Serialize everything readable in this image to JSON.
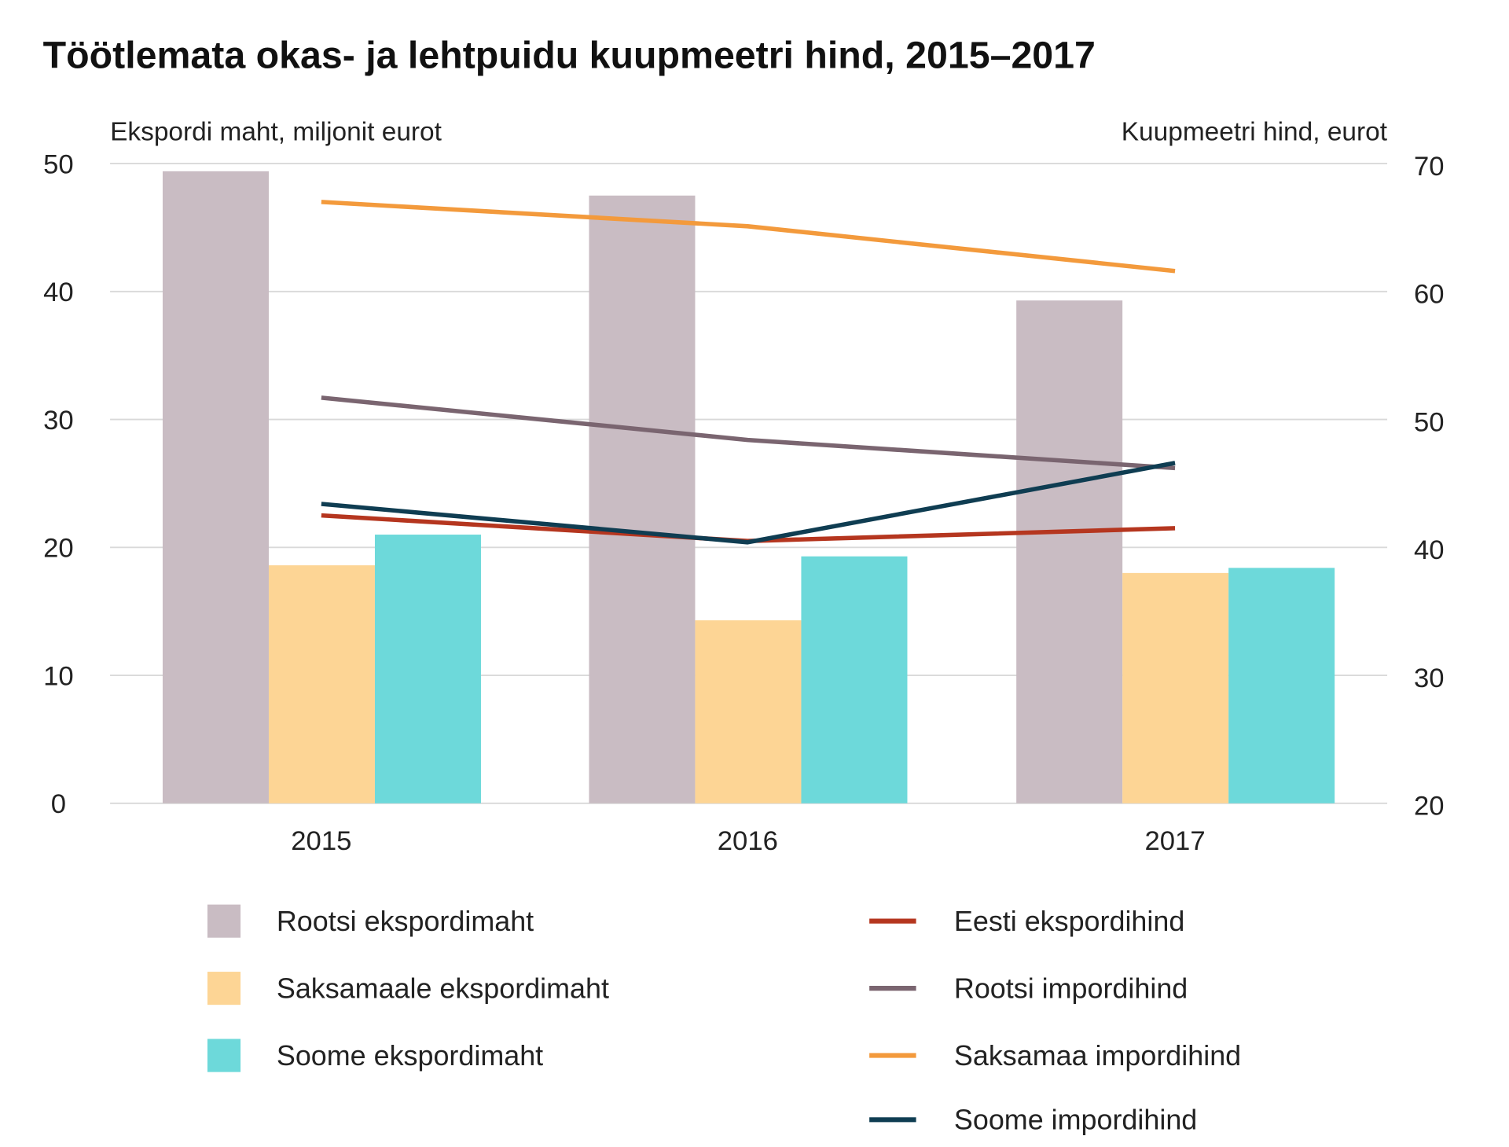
{
  "chart_data": {
    "type": "bar",
    "title": "Töötlemata okas- ja lehtpuidu kuupmeetri hind, 2015–2017",
    "ylabel": "Ekspordi maht, miljonit eurot",
    "y2label": "Kuupmeetri hind, eurot",
    "xlabel": "",
    "categories": [
      "2015",
      "2016",
      "2017"
    ],
    "ylim": [
      0,
      50
    ],
    "y2lim": [
      20,
      70
    ],
    "yticks": [
      0,
      10,
      20,
      30,
      40,
      50
    ],
    "y2ticks": [
      20,
      30,
      40,
      50,
      60,
      70
    ],
    "grid": true,
    "legend_placement": "bottom",
    "bar_series": [
      {
        "name": "Rootsi ekspordimaht",
        "color": "#c9bcc3",
        "values": [
          49.4,
          47.5,
          39.3
        ]
      },
      {
        "name": "Saksamaale ekspordimaht",
        "color": "#fdd595",
        "values": [
          18.6,
          14.3,
          18.0
        ]
      },
      {
        "name": "Soome ekspordimaht",
        "color": "#6dd9da",
        "values": [
          21.0,
          19.3,
          18.4
        ]
      }
    ],
    "line_series": [
      {
        "name": "Eesti ekspordihind",
        "color": "#b5361f",
        "values": [
          42.5,
          40.5,
          41.5
        ]
      },
      {
        "name": "Rootsi impordihind",
        "color": "#7a6570",
        "values": [
          51.7,
          48.4,
          46.2
        ]
      },
      {
        "name": "Saksamaa impordihind",
        "color": "#f39a3c",
        "values": [
          67.0,
          65.1,
          61.6
        ]
      },
      {
        "name": "Soome impordihind",
        "color": "#0f3d52",
        "values": [
          43.4,
          40.4,
          46.6
        ]
      }
    ]
  }
}
